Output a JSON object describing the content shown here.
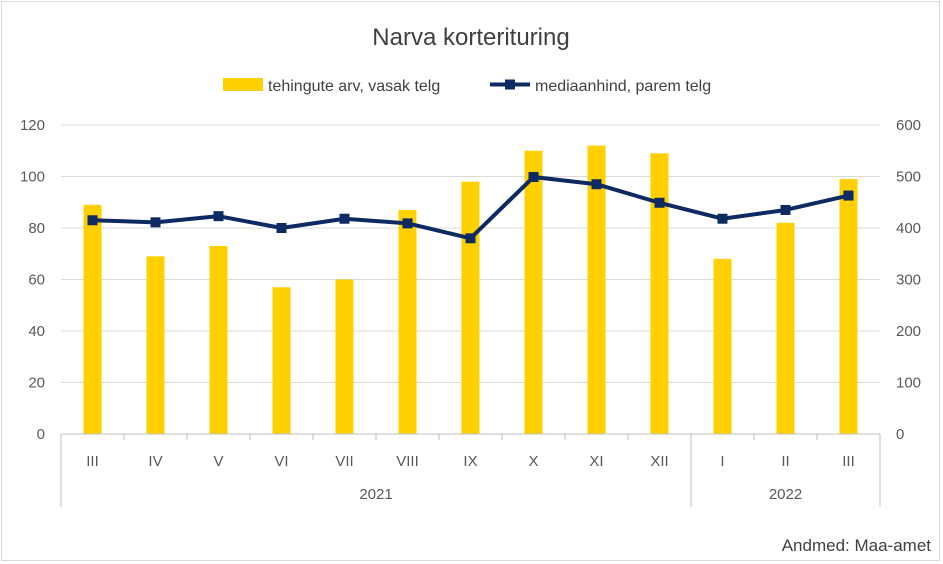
{
  "chart_data": {
    "type": "bar",
    "title": "Narva korterituring",
    "categories": [
      "III",
      "IV",
      "V",
      "VI",
      "VII",
      "VIII",
      "IX",
      "X",
      "XI",
      "XII",
      "I",
      "II",
      "III"
    ],
    "groups": [
      {
        "label": "2021",
        "count": 10
      },
      {
        "label": "2022",
        "count": 3
      }
    ],
    "series": [
      {
        "name": "tehingute arv, vasak telg",
        "type": "bar",
        "axis": "left",
        "color": "#ffd000",
        "values": [
          89,
          69,
          73,
          57,
          60,
          87,
          98,
          110,
          112,
          109,
          68,
          82,
          99
        ]
      },
      {
        "name": "mediaanhind, parem telg",
        "type": "line",
        "axis": "right",
        "color": "#0d2a63",
        "values": [
          415,
          411,
          423,
          400,
          418,
          409,
          380,
          499,
          485,
          449,
          418,
          435,
          463
        ]
      }
    ],
    "yleft": {
      "min": 0,
      "max": 120,
      "step": 20
    },
    "yright": {
      "min": 0,
      "max": 600,
      "step": 100
    },
    "legend_position": "top",
    "grid": true
  },
  "source": "Andmed: Maa-amet"
}
